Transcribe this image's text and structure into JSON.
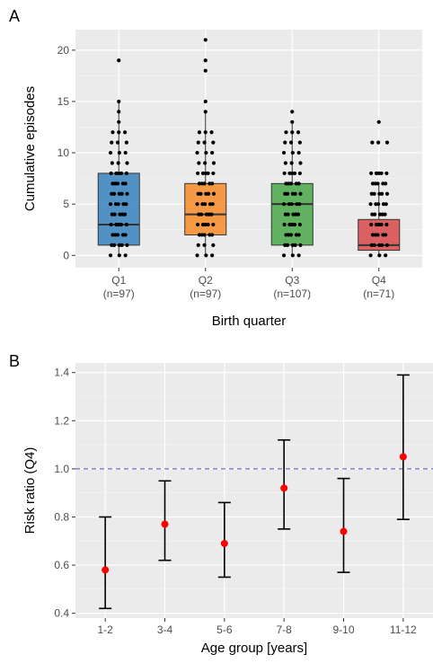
{
  "chart_data": [
    {
      "panel_label": "A",
      "type": "box",
      "xlabel": "Birth quarter",
      "ylabel": "Cumulative episodes",
      "ylim": [
        -1.2,
        22
      ],
      "yticks": [
        0,
        5,
        10,
        15,
        20
      ],
      "grid": true,
      "categories": [
        {
          "name": "Q1",
          "sub": "(n=97)",
          "color": "#4a8cc2",
          "q1": 1,
          "median": 3,
          "q3": 8,
          "whisker_low": 0,
          "whisker_high": 15,
          "points": [
            0,
            1,
            2,
            3,
            4,
            5,
            6,
            7,
            8,
            9,
            10,
            11,
            12,
            13,
            14,
            15,
            19
          ]
        },
        {
          "name": "Q2",
          "sub": "(n=97)",
          "color": "#f7953c",
          "q1": 2,
          "median": 4,
          "q3": 7,
          "whisker_low": 0,
          "whisker_high": 14,
          "points": [
            0,
            1,
            2,
            3,
            4,
            5,
            6,
            7,
            8,
            9,
            10,
            11,
            12,
            14,
            15,
            18,
            19,
            21
          ]
        },
        {
          "name": "Q3",
          "sub": "(n=107)",
          "color": "#58ae58",
          "q1": 1,
          "median": 5,
          "q3": 7,
          "whisker_low": 0,
          "whisker_high": 13,
          "points": [
            0,
            1,
            2,
            3,
            4,
            5,
            6,
            7,
            8,
            9,
            10,
            11,
            12,
            13,
            14
          ]
        },
        {
          "name": "Q4",
          "sub": "(n=71)",
          "color": "#d9585a",
          "q1": 0.5,
          "median": 1,
          "q3": 3.5,
          "whisker_low": 0,
          "whisker_high": 7,
          "points": [
            0,
            1,
            2,
            3,
            4,
            5,
            6,
            7,
            8,
            11,
            13
          ]
        }
      ]
    },
    {
      "panel_label": "B",
      "type": "errorbar",
      "xlabel": "Age group [years]",
      "ylabel": "Risk ratio (Q4)",
      "ylim": [
        0.38,
        1.44
      ],
      "yticks": [
        0.4,
        0.6,
        0.8,
        1.0,
        1.2,
        1.4
      ],
      "ytick_labels": [
        "0.4",
        "0.6",
        "0.8",
        "1.0",
        "1.2",
        "1.4"
      ],
      "reference_line": 1.0,
      "reference_color": "#4c4cc8",
      "point_color": "#ff0000",
      "grid": true,
      "categories": [
        "1-2",
        "3-4",
        "5-6",
        "7-8",
        "9-10",
        "11-12"
      ],
      "estimates": [
        0.58,
        0.77,
        0.69,
        0.92,
        0.74,
        1.05
      ],
      "lower": [
        0.42,
        0.62,
        0.55,
        0.75,
        0.57,
        0.79
      ],
      "upper": [
        0.8,
        0.95,
        0.86,
        1.12,
        0.96,
        1.39
      ]
    }
  ]
}
